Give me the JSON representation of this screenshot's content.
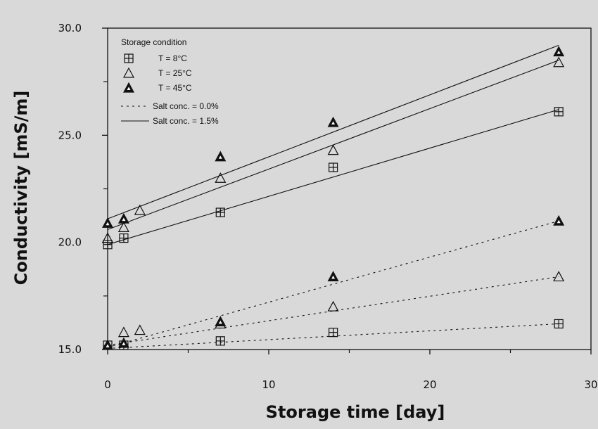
{
  "chart_data": {
    "type": "scatter",
    "xlabel": "Storage time [day]",
    "ylabel": "Conductivity [mS/m]",
    "xlim": [
      0,
      30
    ],
    "ylim": [
      15,
      30
    ],
    "xticks": [
      {
        "value": 0,
        "label": "0"
      },
      {
        "value": 10,
        "label": "10"
      },
      {
        "value": 20,
        "label": "20"
      },
      {
        "value": 30,
        "label": "30"
      }
    ],
    "yticks": [
      {
        "value": 15,
        "label": "15.0"
      },
      {
        "value": 20,
        "label": "20.0"
      },
      {
        "value": 25,
        "label": "25.0"
      },
      {
        "value": 30,
        "label": "30.0"
      }
    ],
    "grid": false,
    "legend": {
      "title": "Storage condition",
      "position": "top-left",
      "markers": [
        {
          "marker": "square-cross",
          "label": "T = 8°C"
        },
        {
          "marker": "triangle-open",
          "label": "T = 25°C"
        },
        {
          "marker": "triangle-filled",
          "label": "T = 45°C"
        }
      ],
      "lines": [
        {
          "style": "dotted",
          "label": "Salt conc. = 0.0%"
        },
        {
          "style": "solid",
          "label": "Salt conc. = 1.5%"
        }
      ]
    },
    "series": [
      {
        "marker": "square-cross",
        "salt": "1.5%",
        "x": [
          0,
          1,
          7,
          14,
          28
        ],
        "y": [
          19.9,
          20.2,
          21.4,
          23.5,
          26.1
        ]
      },
      {
        "marker": "triangle-open",
        "salt": "1.5%",
        "x": [
          0,
          1,
          2,
          7,
          14,
          28
        ],
        "y": [
          20.2,
          20.7,
          21.5,
          23.0,
          24.3,
          28.4
        ]
      },
      {
        "marker": "triangle-filled",
        "salt": "1.5%",
        "x": [
          0,
          1,
          7,
          14,
          28
        ],
        "y": [
          20.9,
          21.1,
          24.0,
          25.6,
          28.9
        ]
      },
      {
        "marker": "square-cross",
        "salt": "0.0%",
        "x": [
          0,
          1,
          7,
          14,
          28
        ],
        "y": [
          15.2,
          15.2,
          15.4,
          15.8,
          16.2
        ]
      },
      {
        "marker": "triangle-open",
        "salt": "0.0%",
        "x": [
          0,
          1,
          2,
          7,
          14,
          28
        ],
        "y": [
          15.2,
          15.8,
          15.9,
          16.2,
          17.0,
          18.4
        ]
      },
      {
        "marker": "triangle-filled",
        "salt": "0.0%",
        "x": [
          0,
          1,
          7,
          14,
          28
        ],
        "y": [
          15.2,
          15.3,
          16.3,
          18.4,
          21.0
        ]
      }
    ],
    "fit_lines": [
      {
        "style": "solid",
        "salt": "1.5%",
        "marker": "square-cross",
        "x": [
          0,
          28
        ],
        "y": [
          19.9,
          26.2
        ]
      },
      {
        "style": "solid",
        "salt": "1.5%",
        "marker": "triangle-open",
        "x": [
          0,
          28
        ],
        "y": [
          20.6,
          28.5
        ]
      },
      {
        "style": "solid",
        "salt": "1.5%",
        "marker": "triangle-filled",
        "x": [
          0,
          28
        ],
        "y": [
          21.1,
          29.2
        ]
      },
      {
        "style": "dotted",
        "salt": "0.0%",
        "marker": "square-cross",
        "x": [
          0,
          28
        ],
        "y": [
          15.05,
          16.2
        ]
      },
      {
        "style": "dotted",
        "salt": "0.0%",
        "marker": "triangle-open",
        "x": [
          0,
          28
        ],
        "y": [
          15.2,
          18.4
        ]
      },
      {
        "style": "dotted",
        "salt": "0.0%",
        "marker": "triangle-filled",
        "x": [
          0,
          28
        ],
        "y": [
          15.1,
          21.0
        ]
      }
    ]
  }
}
